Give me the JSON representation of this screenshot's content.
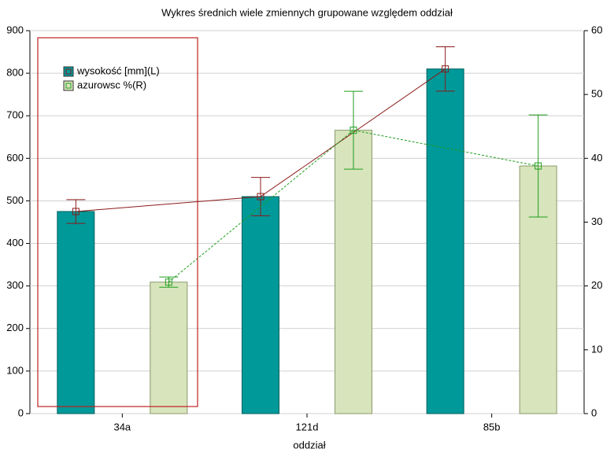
{
  "chart_data": {
    "type": "bar",
    "title": "Wykres średnich   wiele zmiennych grupowane względem oddział",
    "x_label": "oddział",
    "categories": [
      "34a",
      "121d",
      "85b"
    ],
    "series": [
      {
        "name": "wysokość [mm](L)",
        "color": "#009999",
        "line_color": "#8b1a1a",
        "axis": "y",
        "values": [
          475,
          510,
          810
        ],
        "errors": [
          28,
          45,
          52
        ]
      },
      {
        "name": "azurowsc %(R)",
        "color": "#d8e4bc",
        "line_color": "#1e9e1e",
        "axis": "y2",
        "values": [
          20.6,
          44.4,
          38.8
        ],
        "errors": [
          0.8,
          6.1,
          8.0
        ]
      }
    ],
    "ylim": [
      0,
      900
    ],
    "yticks": [
      0,
      100,
      200,
      300,
      400,
      500,
      600,
      700,
      800,
      900
    ],
    "y2lim": [
      0,
      60
    ],
    "y2ticks": [
      0,
      10,
      20,
      30,
      40,
      50,
      60
    ],
    "grid": true
  }
}
